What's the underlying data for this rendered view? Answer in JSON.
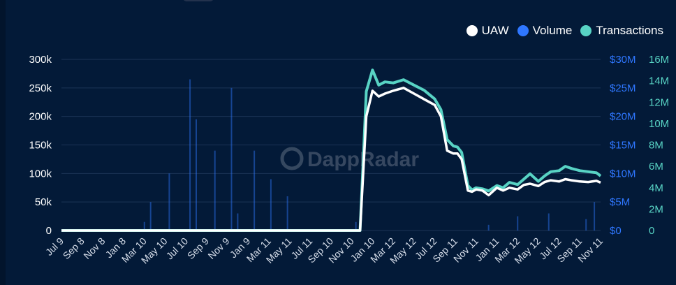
{
  "chart_data": {
    "type": "line",
    "brand": "DappRadar",
    "legend": {
      "placement": "top-right",
      "items": [
        {
          "name": "UAW",
          "color": "#ffffff"
        },
        {
          "name": "Volume",
          "color": "#2f77ff"
        },
        {
          "name": "Transactions",
          "color": "#58d3c4"
        }
      ]
    },
    "categories": [
      "Jul 9",
      "Sep 8",
      "Nov 8",
      "Jan 8",
      "Mar 10",
      "May 10",
      "Jul 10",
      "Sep 9",
      "Nov 9",
      "Jan 9",
      "Mar 11",
      "May 11",
      "Jul 11",
      "Sep 10",
      "Nov 10",
      "Jan 10",
      "Mar 12",
      "May 12",
      "Jul 12",
      "Sep 11",
      "Nov 11",
      "Jan 11",
      "Mar 12",
      "May 12",
      "Jul 12",
      "Sep 11",
      "Nov 11"
    ],
    "axes": {
      "uaw": {
        "ticks": [
          "0",
          "50k",
          "100k",
          "150k",
          "200k",
          "250k",
          "300k"
        ],
        "range": [
          0,
          300000
        ]
      },
      "volume": {
        "ticks": [
          "$0",
          "$5M",
          "$10M",
          "$15M",
          "$20M",
          "$25M",
          "$30M"
        ],
        "range": [
          0,
          30000000
        ]
      },
      "transactions": {
        "ticks": [
          "0",
          "2M",
          "4M",
          "6M",
          "8M",
          "10M",
          "12M",
          "14M",
          "16M"
        ],
        "range": [
          0,
          16000000
        ]
      }
    },
    "grid": true,
    "series": [
      {
        "name": "UAW",
        "axis": "uaw",
        "x": [
          0,
          14.4,
          14.7,
          15,
          15.3,
          15.6,
          16,
          16.5,
          17,
          17.5,
          18,
          18.3,
          18.6,
          18.9,
          19.1,
          19.3,
          19.6,
          19.8,
          20,
          20.3,
          20.6,
          21,
          21.3,
          21.6,
          22,
          22.3,
          22.6,
          23,
          23.3,
          23.6,
          24,
          24.3,
          24.6,
          25,
          25.4,
          25.8,
          26
        ],
        "values": [
          0,
          0,
          200000,
          245000,
          235000,
          240000,
          245000,
          250000,
          240000,
          230000,
          220000,
          200000,
          140000,
          135000,
          135000,
          125000,
          70000,
          68000,
          72000,
          70000,
          62000,
          75000,
          70000,
          75000,
          72000,
          80000,
          82000,
          78000,
          85000,
          88000,
          86000,
          90000,
          88000,
          86000,
          85000,
          87000,
          84000
        ]
      },
      {
        "name": "Transactions",
        "axis": "transactions",
        "x": [
          0,
          14.4,
          14.7,
          15,
          15.3,
          15.6,
          16,
          16.5,
          17,
          17.5,
          18,
          18.3,
          18.6,
          18.9,
          19.1,
          19.3,
          19.6,
          19.8,
          20,
          20.3,
          20.6,
          21,
          21.3,
          21.6,
          22,
          22.3,
          22.6,
          23,
          23.3,
          23.6,
          24,
          24.3,
          24.6,
          25,
          25.4,
          25.8,
          26
        ],
        "values": [
          0,
          0,
          13000000,
          15000000,
          13600000,
          13900000,
          13800000,
          14100000,
          13600000,
          13100000,
          12300000,
          11300000,
          8500000,
          7900000,
          7800000,
          7300000,
          4200000,
          3800000,
          4000000,
          3900000,
          3700000,
          4200000,
          4000000,
          4500000,
          4300000,
          4800000,
          5300000,
          4600000,
          5100000,
          5500000,
          5600000,
          6000000,
          5800000,
          5600000,
          5500000,
          5400000,
          5100000
        ]
      },
      {
        "name": "Volume",
        "axis": "volume",
        "x": [
          4.0,
          4.3,
          5.2,
          6.2,
          6.5,
          7.4,
          8.2,
          8.5,
          9.3,
          10.1,
          10.9,
          14.2,
          20.6,
          22.0,
          23.5,
          25.3,
          25.7
        ],
        "values": [
          1500000,
          5000000,
          10000000,
          26500000,
          19500000,
          14000000,
          25000000,
          3000000,
          14000000,
          9000000,
          6000000,
          1500000,
          1000000,
          2500000,
          3000000,
          2000000,
          5000000
        ]
      }
    ]
  }
}
